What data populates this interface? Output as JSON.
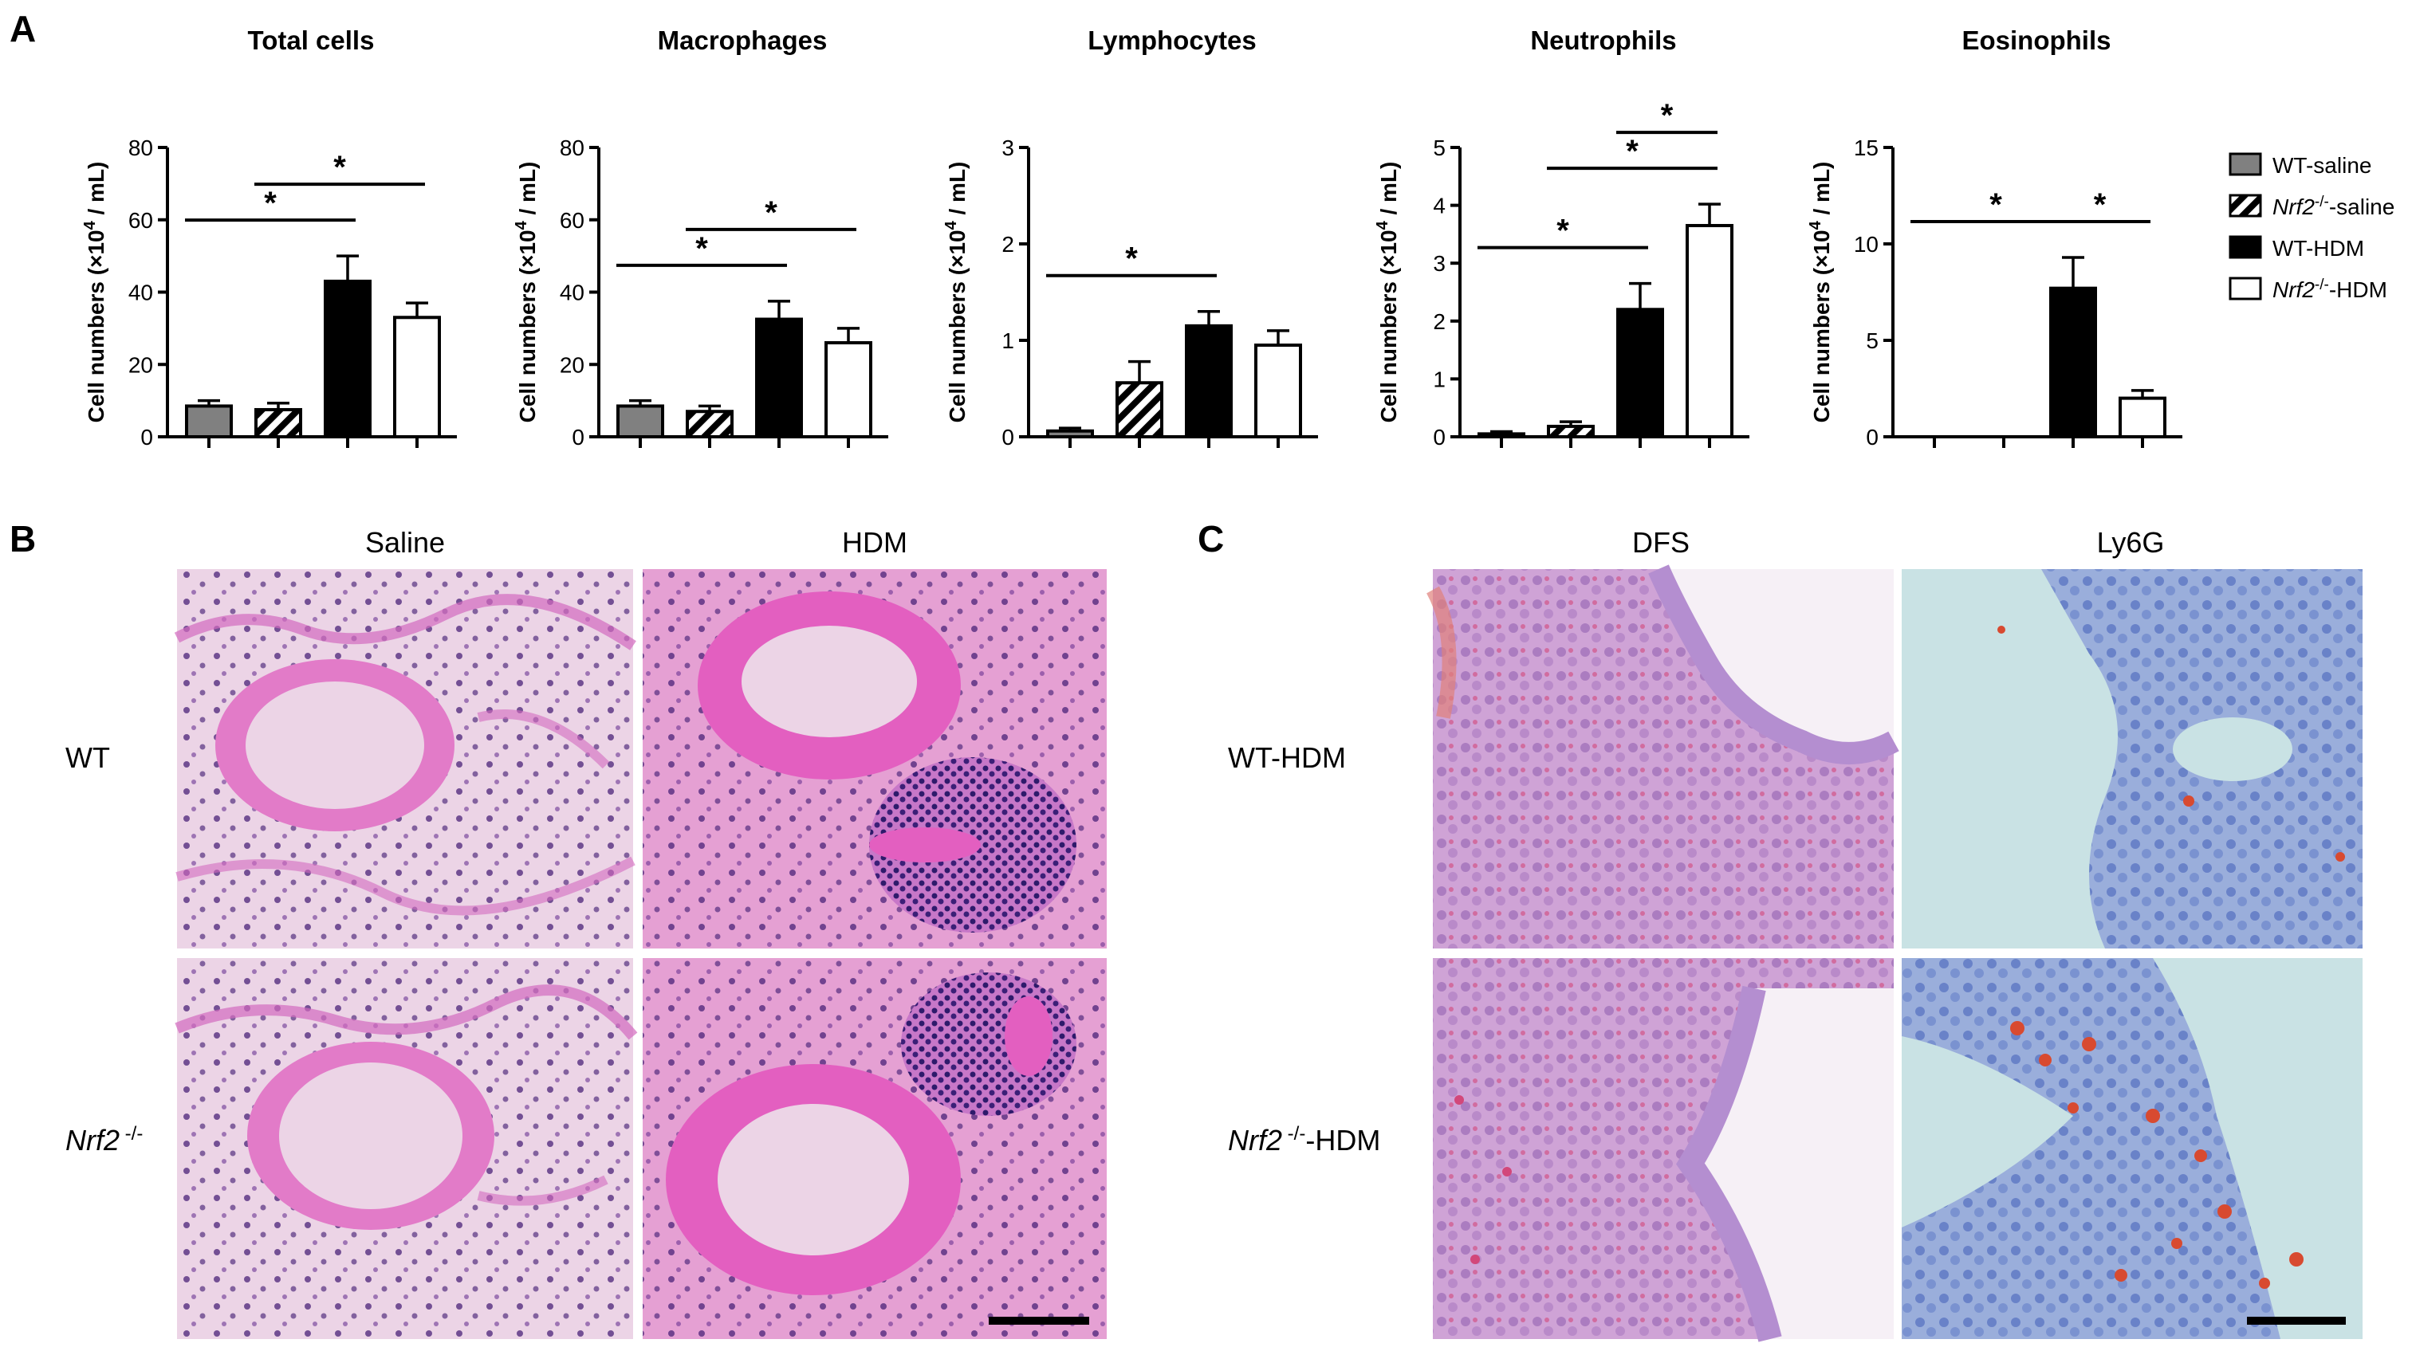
{
  "panels": {
    "a": "A",
    "b": "B",
    "c": "C"
  },
  "colors": {
    "wt_saline": "#808080",
    "nrf2_saline_hatch": "#000000",
    "wt_hdm": "#000000",
    "nrf2_hdm": "#ffffff",
    "he_background": "#ecd4e6",
    "he_tissue": "#e27bc8",
    "he_nuclei": "#4a2378",
    "dfs_tissue": "#d1a6d8",
    "ly6g_background": "#c9e2e4",
    "ly6g_tissue": "#7b95cf",
    "stain_red": "#d84a30"
  },
  "legend": [
    {
      "prefix": "WT-saline",
      "sup": "",
      "suffix": "",
      "style": "gray"
    },
    {
      "prefix": "Nrf2",
      "sup": "-/-",
      "suffix": "-saline",
      "style": "hatch"
    },
    {
      "prefix": "WT-HDM",
      "sup": "",
      "suffix": "",
      "style": "black"
    },
    {
      "prefix": "Nrf2",
      "sup": "-/-",
      "suffix": "-HDM",
      "style": "white"
    }
  ],
  "ylabel": {
    "main": "Cell numbers (×10",
    "sup": "4",
    "end": " / mL)"
  },
  "significance_mark": "*",
  "chart_data": [
    {
      "type": "bar",
      "title": "Total cells",
      "ylim": [
        0,
        80
      ],
      "ticks": [
        "0",
        "20",
        "40",
        "60",
        "80"
      ],
      "values": [
        8.5,
        7.5,
        43,
        33
      ],
      "errors": [
        1.5,
        1.8,
        7,
        4
      ],
      "significance": [
        [
          0,
          2
        ],
        [
          1,
          3
        ]
      ]
    },
    {
      "type": "bar",
      "title": "Macrophages",
      "ylim": [
        0,
        80
      ],
      "ticks": [
        "0",
        "20",
        "40",
        "60",
        "80"
      ],
      "values": [
        8.5,
        7,
        32.5,
        26
      ],
      "errors": [
        1.5,
        1.5,
        5,
        4
      ],
      "significance": [
        [
          0,
          2
        ],
        [
          1,
          3
        ]
      ]
    },
    {
      "type": "bar",
      "title": "Lymphocytes",
      "ylim": [
        0,
        3
      ],
      "ticks": [
        "0",
        "1",
        "2",
        "3"
      ],
      "values": [
        0.06,
        0.56,
        1.15,
        0.95
      ],
      "errors": [
        0.03,
        0.22,
        0.15,
        0.15
      ],
      "significance": [
        [
          0,
          2
        ]
      ]
    },
    {
      "type": "bar",
      "title": "Neutrophils",
      "ylim": [
        0,
        5
      ],
      "ticks": [
        "0",
        "1",
        "2",
        "3",
        "4",
        "5"
      ],
      "values": [
        0.05,
        0.18,
        2.2,
        3.65
      ],
      "errors": [
        0.04,
        0.08,
        0.45,
        0.37
      ],
      "significance": [
        [
          0,
          2
        ],
        [
          1,
          3
        ],
        [
          2,
          3
        ]
      ]
    },
    {
      "type": "bar",
      "title": "Eosinophils",
      "ylim": [
        0,
        15
      ],
      "ticks": [
        "0",
        "5",
        "10",
        "15"
      ],
      "values": [
        0,
        0,
        7.7,
        2
      ],
      "errors": [
        0,
        0,
        1.6,
        0.4
      ],
      "significance": [
        [
          0,
          2
        ],
        [
          2,
          3
        ]
      ]
    }
  ],
  "panel_b": {
    "columns": [
      "Saline",
      "HDM"
    ],
    "rows": [
      {
        "main": "WT",
        "sup": "",
        "suffix": "",
        "italic": false
      },
      {
        "main": "Nrf2",
        "sup": " -/-",
        "suffix": "",
        "italic": true
      }
    ]
  },
  "panel_c": {
    "columns": [
      "DFS",
      "Ly6G"
    ],
    "rows": [
      {
        "main": "WT-HDM",
        "sup": "",
        "suffix": "",
        "italic": false
      },
      {
        "main": "Nrf2",
        "sup": " -/-",
        "suffix": "-HDM",
        "italic": true
      }
    ]
  }
}
